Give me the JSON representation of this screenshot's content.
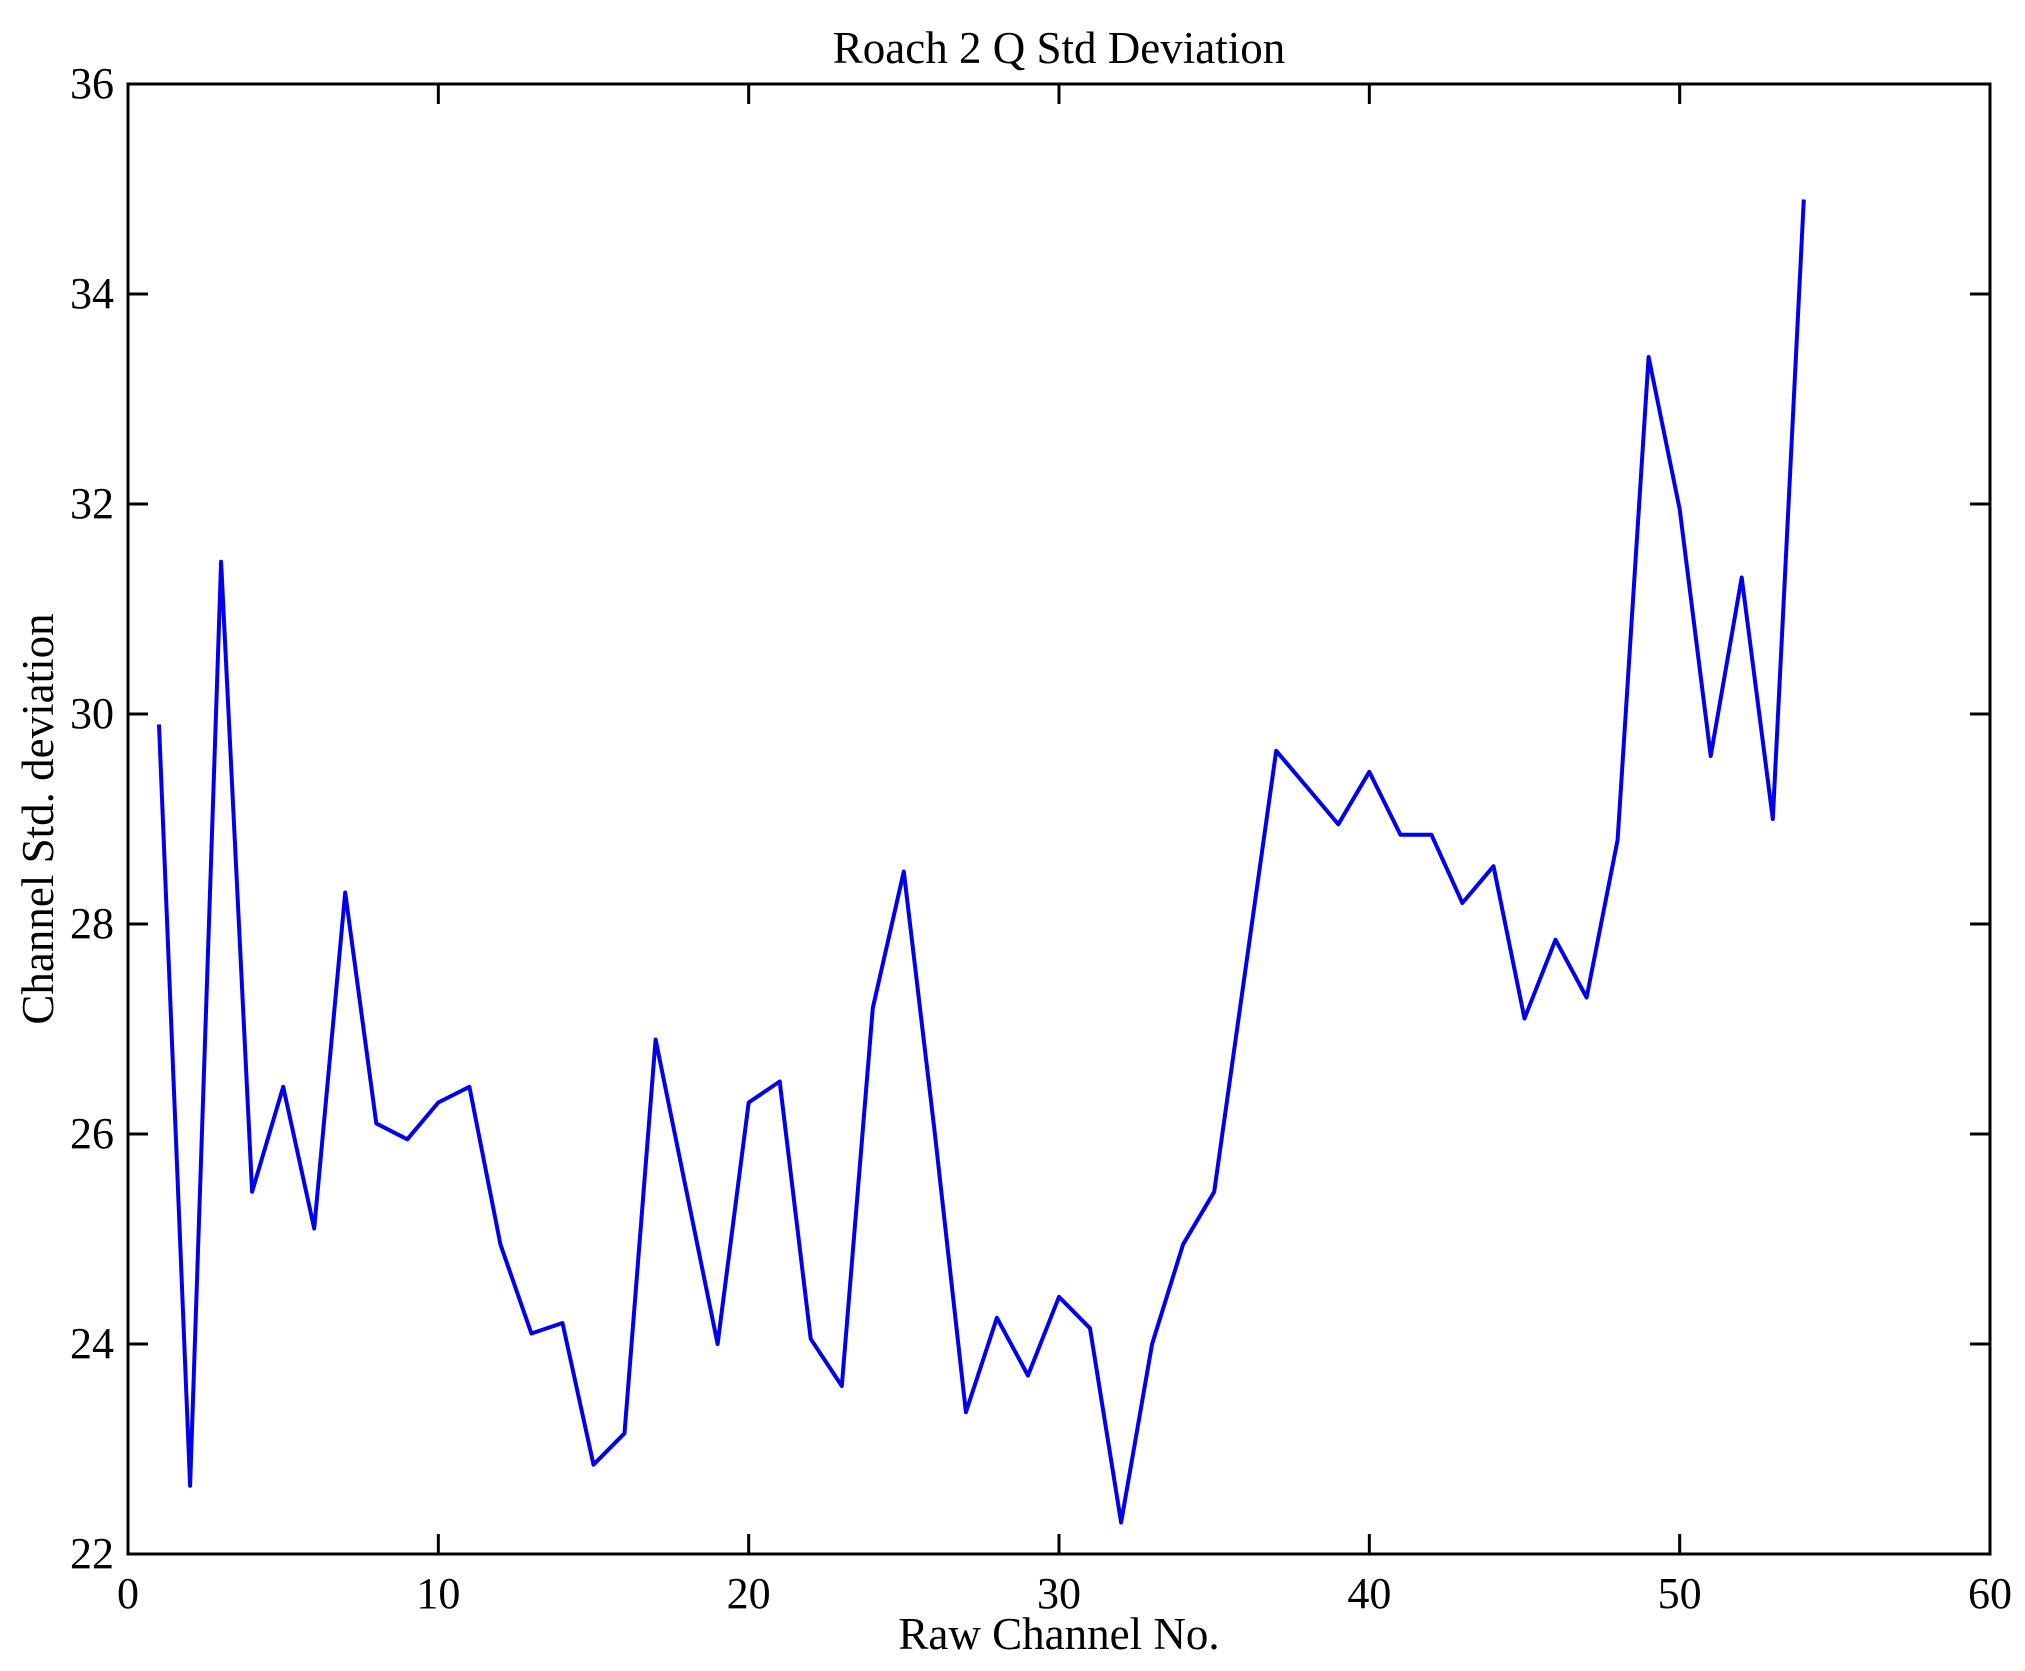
{
  "chart_data": {
    "type": "line",
    "title": "Roach 2 Q Std Deviation",
    "xlabel": "Raw Channel No.",
    "ylabel": "Channel Std. deviation",
    "xlim": [
      0,
      60
    ],
    "ylim": [
      22,
      36
    ],
    "x_ticks": [
      0,
      10,
      20,
      30,
      40,
      50,
      60
    ],
    "y_ticks": [
      22,
      24,
      26,
      28,
      30,
      32,
      34,
      36
    ],
    "grid": false,
    "legend": null,
    "line_color": "#0000EE",
    "axis_color": "#000000",
    "background_color": "#ffffff",
    "x": [
      1,
      2,
      3,
      4,
      5,
      6,
      7,
      8,
      9,
      10,
      11,
      12,
      13,
      14,
      15,
      16,
      17,
      18,
      19,
      20,
      21,
      22,
      23,
      24,
      25,
      26,
      27,
      28,
      29,
      30,
      31,
      32,
      33,
      34,
      35,
      36,
      37,
      38,
      39,
      40,
      41,
      42,
      43,
      44,
      45,
      46,
      47,
      48,
      49,
      50,
      51,
      52,
      53,
      54
    ],
    "y": [
      29.9,
      22.65,
      31.45,
      25.45,
      26.45,
      25.1,
      28.3,
      26.1,
      25.95,
      26.3,
      26.45,
      24.95,
      24.1,
      24.2,
      22.85,
      23.15,
      26.9,
      25.45,
      24.0,
      26.3,
      26.5,
      24.05,
      23.6,
      27.2,
      28.5,
      26.0,
      23.35,
      24.25,
      23.7,
      24.45,
      24.15,
      22.3,
      24.0,
      24.95,
      25.45,
      27.55,
      29.65,
      29.3,
      28.95,
      29.45,
      28.85,
      28.85,
      28.2,
      28.55,
      27.1,
      27.85,
      27.3,
      28.8,
      33.4,
      31.95,
      29.6,
      31.3,
      29.0,
      34.9
    ]
  }
}
